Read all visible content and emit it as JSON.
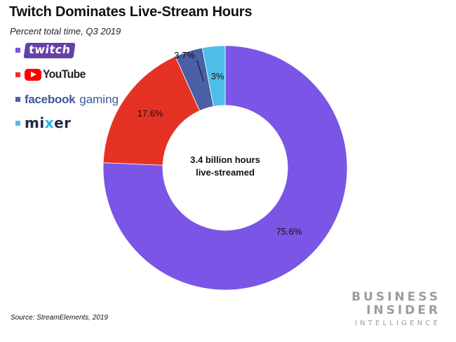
{
  "chart_data": {
    "type": "pie",
    "variant": "donut",
    "title": "Twitch Dominates Live-Stream Hours",
    "subtitle": "Percent total time, Q3 2019",
    "center_label": [
      "3.4 billion hours",
      "live-streamed"
    ],
    "slices": [
      {
        "name": "Twitch",
        "value": 75.6,
        "label": "75.6%",
        "color": "#7b55e5"
      },
      {
        "name": "YouTube",
        "value": 17.6,
        "label": "17.6%",
        "color": "#e63224"
      },
      {
        "name": "Facebook Gaming",
        "value": 3.7,
        "label": "3.7%",
        "color": "#4a5fa5"
      },
      {
        "name": "Mixer",
        "value": 3.0,
        "label": "3%",
        "color": "#4fbde9"
      }
    ],
    "legend": {
      "placement": "top-left",
      "items": [
        {
          "logo": "twitch",
          "text": "twitch",
          "swatch": "#7b55e5"
        },
        {
          "logo": "youtube",
          "text": "YouTube",
          "swatch": "#e63224"
        },
        {
          "logo": "facebook-gaming",
          "text": "facebook",
          "text2": "gaming",
          "swatch": "#4a5fa5"
        },
        {
          "logo": "mixer",
          "text_a": "mi",
          "text_b": "x",
          "text_c": "er",
          "swatch": "#4fbde9"
        }
      ]
    }
  },
  "source": "Source: StreamElements, 2019",
  "brand": {
    "line1": "BUSINESS",
    "line2": "INSIDER",
    "line3": "INTELLIGENCE"
  }
}
